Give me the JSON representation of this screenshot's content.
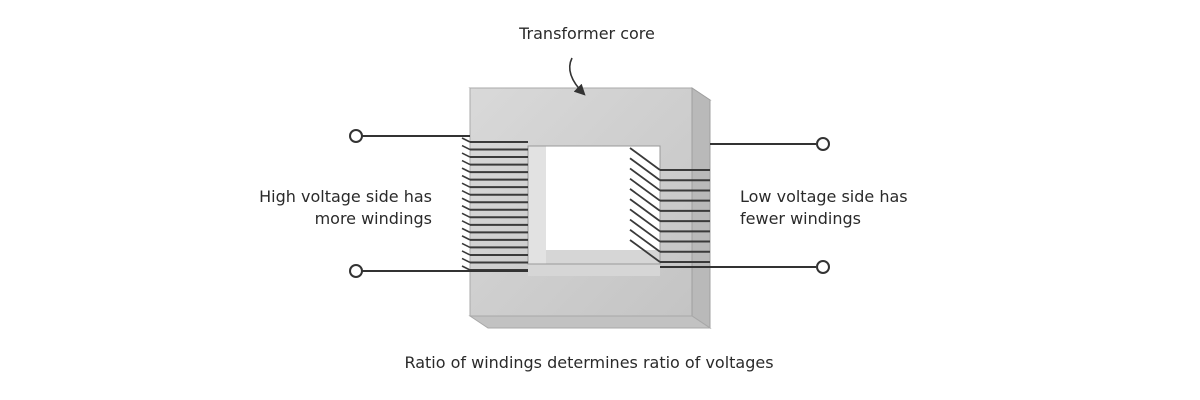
{
  "labels": {
    "core": "Transformer core",
    "high_voltage_line1": "High voltage side has",
    "high_voltage_line2": "more windings",
    "low_voltage_line1": "Low voltage side has",
    "low_voltage_line2": "fewer windings",
    "caption": "Ratio of windings determines ratio of voltages"
  },
  "windings": {
    "primary_turns": 18,
    "secondary_turns": 10
  },
  "colors": {
    "core_front": "#cfcfcf",
    "core_top": "#e4e4e4",
    "core_side": "#b9b9b9",
    "core_window_inner": "#f4f4f4",
    "winding": "#3a3a3a",
    "wire": "#333333",
    "terminal_fill": "#ffffff"
  },
  "icons": {
    "pointer": "curved-arrow-icon",
    "terminal": "terminal-circle-icon"
  }
}
